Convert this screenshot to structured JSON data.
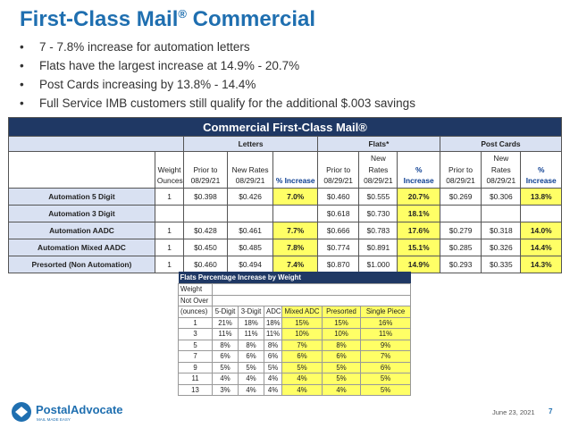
{
  "slide": {
    "title": "First-Class Mail",
    "title_sup": "®",
    "title_rest": " Commercial",
    "bullet_symbol": "•",
    "bullets": [
      "7 - 7.8% increase for automation letters",
      "Flats have the largest increase at 14.9% - 20.7%",
      "Post Cards increasing by 13.8% - 14.4%",
      "Full Service IMB customers still qualify for the additional $.003 savings"
    ],
    "date": "June 23, 2021",
    "page": "7",
    "accent": "#1f6fb0"
  },
  "main_table": {
    "banner": "Commercial First-Class Mail®",
    "groups": {
      "letters": "Letters",
      "flats": "Flats*",
      "postcards": "Post Cards"
    },
    "headers": {
      "weight": [
        "Weight",
        "Ounces"
      ],
      "prior": [
        "Prior to",
        "08/29/21"
      ],
      "new": [
        "New Rates",
        "08/29/21"
      ],
      "new_stack": [
        "New",
        "Rates",
        "08/29/21"
      ],
      "pct_inline": "% Increase",
      "pct_stack": [
        "%",
        "Increase"
      ]
    },
    "rows": [
      {
        "label": "Automation 5 Digit",
        "weight": "1",
        "l_prior": "$0.398",
        "l_new": "$0.426",
        "l_pct": "7.0%",
        "f_prior": "$0.460",
        "f_new": "$0.555",
        "f_pct": "20.7%",
        "p_prior": "$0.269",
        "p_new": "$0.306",
        "p_pct": "13.8%"
      },
      {
        "label": "Automation 3 Digit",
        "weight": "",
        "l_prior": "",
        "l_new": "",
        "l_pct": "",
        "f_prior": "$0.618",
        "f_new": "$0.730",
        "f_pct": "18.1%",
        "p_prior": "",
        "p_new": "",
        "p_pct": ""
      },
      {
        "label": "Automation AADC",
        "weight": "1",
        "l_prior": "$0.428",
        "l_new": "$0.461",
        "l_pct": "7.7%",
        "f_prior": "$0.666",
        "f_new": "$0.783",
        "f_pct": "17.6%",
        "p_prior": "$0.279",
        "p_new": "$0.318",
        "p_pct": "14.0%"
      },
      {
        "label": "Automation Mixed AADC",
        "weight": "1",
        "l_prior": "$0.450",
        "l_new": "$0.485",
        "l_pct": "7.8%",
        "f_prior": "$0.774",
        "f_new": "$0.891",
        "f_pct": "15.1%",
        "p_prior": "$0.285",
        "p_new": "$0.326",
        "p_pct": "14.4%"
      },
      {
        "label": "Presorted (Non Automation)",
        "weight": "1",
        "l_prior": "$0.460",
        "l_new": "$0.494",
        "l_pct": "7.4%",
        "f_prior": "$0.870",
        "f_new": "$1.000",
        "f_pct": "14.9%",
        "p_prior": "$0.293",
        "p_new": "$0.335",
        "p_pct": "14.3%"
      }
    ],
    "highlight_color": "#ffff66",
    "header_color": "#1f3864",
    "label_color": "#d9e1f2"
  },
  "flats_table": {
    "title": "Flats Percentage Increase by Weight",
    "weight_header": [
      "Weight",
      "Not Over",
      "(ounces)"
    ],
    "columns": [
      "5-Digit",
      "3-Digit",
      "ADC",
      "Mixed ADC",
      "Presorted",
      "Single Piece"
    ],
    "rows": [
      {
        "w": "1",
        "v": [
          "21%",
          "18%",
          "18%",
          "15%",
          "15%",
          "16%"
        ]
      },
      {
        "w": "3",
        "v": [
          "11%",
          "11%",
          "11%",
          "10%",
          "10%",
          "11%"
        ]
      },
      {
        "w": "5",
        "v": [
          "8%",
          "8%",
          "8%",
          "7%",
          "8%",
          "9%"
        ]
      },
      {
        "w": "7",
        "v": [
          "6%",
          "6%",
          "6%",
          "6%",
          "6%",
          "7%"
        ]
      },
      {
        "w": "9",
        "v": [
          "5%",
          "5%",
          "5%",
          "5%",
          "5%",
          "6%"
        ]
      },
      {
        "w": "11",
        "v": [
          "4%",
          "4%",
          "4%",
          "4%",
          "5%",
          "5%"
        ]
      },
      {
        "w": "13",
        "v": [
          "3%",
          "4%",
          "4%",
          "4%",
          "4%",
          "5%"
        ]
      }
    ]
  },
  "logo": {
    "name": "PostalAdvocate",
    "tagline": "MAIL MADE EASY",
    "icon": "postal-advocate-logo-icon",
    "color": "#1f6fb0"
  }
}
